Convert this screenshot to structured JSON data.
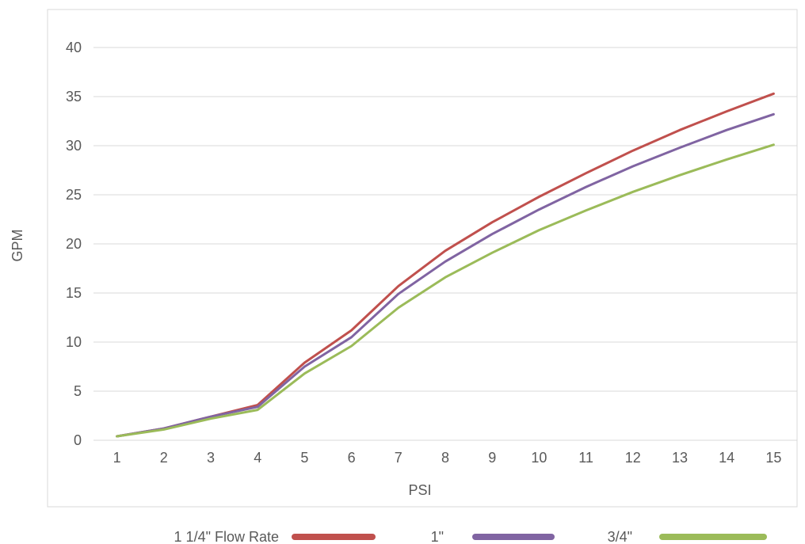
{
  "chart_data": {
    "type": "line",
    "title": "",
    "xlabel": "PSI",
    "ylabel": "GPM",
    "x": [
      1,
      2,
      3,
      4,
      5,
      6,
      7,
      8,
      9,
      10,
      11,
      12,
      13,
      14,
      15
    ],
    "ylim": [
      0,
      40
    ],
    "yticks": [
      0,
      5,
      10,
      15,
      20,
      25,
      30,
      35,
      40
    ],
    "grid": true,
    "legend_position": "bottom",
    "series": [
      {
        "name": "1 1/4\" Flow Rate",
        "color": "#c0504d",
        "values": [
          0.4,
          1.2,
          2.4,
          3.6,
          7.9,
          11.2,
          15.7,
          19.3,
          22.2,
          24.8,
          27.2,
          29.5,
          31.6,
          33.5,
          35.3
        ]
      },
      {
        "name": "1\"",
        "color": "#8064a2",
        "values": [
          0.4,
          1.2,
          2.4,
          3.4,
          7.5,
          10.5,
          14.9,
          18.2,
          21.0,
          23.5,
          25.8,
          27.9,
          29.8,
          31.6,
          33.2
        ]
      },
      {
        "name": "3/4\"",
        "color": "#9bbb59",
        "values": [
          0.4,
          1.1,
          2.2,
          3.1,
          6.8,
          9.6,
          13.5,
          16.6,
          19.1,
          21.4,
          23.4,
          25.3,
          27.0,
          28.6,
          30.1
        ]
      }
    ]
  }
}
